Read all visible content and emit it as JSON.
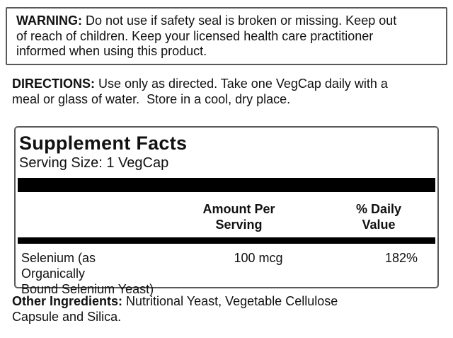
{
  "page": {
    "background": "#ffffff"
  },
  "colors": {
    "text": "#111111",
    "bar": "#000000",
    "box_border": "#59595b"
  },
  "warning": {
    "label": "WARNING:",
    "text": "Do not use if safety seal is broken or missing. Keep out\nof reach of children. Keep your licensed health care practitioner\ninformed when using this product."
  },
  "directions": {
    "label": "DIRECTIONS:",
    "text": "Use only as directed. Take one VegCap daily with a\nmeal or glass of water.  Store in a cool, dry place."
  },
  "supplement_facts": {
    "title": "Supplement Facts",
    "serving_size": "Serving Size: 1 VegCap",
    "columns": {
      "amount_header": "Amount Per\nServing",
      "daily_value_header": "% Daily\nValue"
    },
    "rows": [
      {
        "name": "Selenium (as Organically\nBound Selenium Yeast)",
        "amount": "100 mcg",
        "daily_value": "182%"
      }
    ]
  },
  "other_ingredients": {
    "label": "Other Ingredients:",
    "text": "Nutritional Yeast, Vegetable Cellulose\nCapsule and Silica."
  }
}
